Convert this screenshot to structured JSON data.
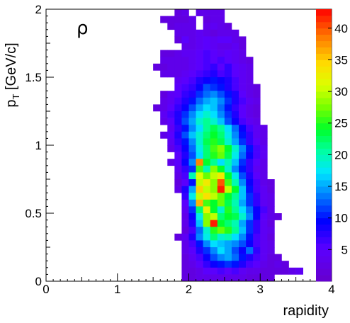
{
  "chart_data": {
    "type": "heatmap",
    "title": "",
    "annotation": "ρ",
    "xlabel": "rapidity",
    "ylabel": "p",
    "ylabel_sub": "T",
    "ylabel_unit": " [GeV/c]",
    "xlim": [
      0,
      4
    ],
    "ylim": [
      0,
      2
    ],
    "x_ticks": [
      0,
      1,
      2,
      3,
      4
    ],
    "x_tick_labels": [
      "0",
      "1",
      "2",
      "3",
      "4"
    ],
    "y_ticks": [
      0,
      0.5,
      1,
      1.5,
      2
    ],
    "y_tick_labels": [
      "0",
      "0.5",
      "1",
      "1.5",
      "2"
    ],
    "z_range": [
      0,
      43
    ],
    "colorbar_ticks": [
      5,
      10,
      15,
      20,
      25,
      30,
      35,
      40
    ],
    "colorbar_tick_labels": [
      "5",
      "10",
      "15",
      "20",
      "25",
      "30",
      "35",
      "40"
    ],
    "bins_x": 40,
    "bins_y": 40,
    "bin_width_x": 0.1,
    "bin_width_y": 0.05,
    "rows": [
      {
        "y": 1.95,
        "x_start": 1.8,
        "values": [
          2,
          3,
          0,
          3,
          3,
          3,
          3
        ]
      },
      {
        "y": 1.9,
        "x_start": 1.6,
        "values": [
          2,
          2,
          2,
          2,
          3,
          0,
          2,
          3,
          3
        ]
      },
      {
        "y": 1.85,
        "x_start": 1.7,
        "values": [
          2,
          3,
          3,
          3,
          0,
          3,
          4,
          3,
          2
        ]
      },
      {
        "y": 1.8,
        "x_start": 1.8,
        "values": [
          3,
          3,
          3,
          4,
          3,
          2,
          3,
          3,
          3
        ]
      },
      {
        "y": 1.75,
        "x_start": 1.8,
        "values": [
          2,
          5,
          3,
          4,
          5,
          4,
          5,
          5,
          3,
          2
        ]
      },
      {
        "y": 1.7,
        "x_start": 1.9,
        "values": [
          3,
          3,
          4,
          5,
          4,
          3,
          3,
          4,
          2
        ]
      },
      {
        "y": 1.65,
        "x_start": 1.6,
        "values": [
          2,
          2,
          3,
          4,
          4,
          5,
          6,
          5,
          4,
          5,
          4,
          3
        ]
      },
      {
        "y": 1.6,
        "x_start": 1.6,
        "values": [
          3,
          3,
          3,
          3,
          4,
          5,
          6,
          5,
          6,
          5,
          4,
          3,
          2
        ]
      },
      {
        "y": 1.55,
        "x_start": 1.5,
        "values": [
          2,
          2,
          3,
          3,
          3,
          4,
          5,
          6,
          7,
          5,
          7,
          5,
          4,
          3
        ]
      },
      {
        "y": 1.5,
        "x_start": 1.6,
        "values": [
          3,
          3,
          3,
          4,
          5,
          6,
          7,
          8,
          6,
          7,
          5,
          4,
          3
        ]
      },
      {
        "y": 1.45,
        "x_start": 1.8,
        "values": [
          4,
          5,
          6,
          8,
          9,
          10,
          9,
          8,
          6,
          4,
          3
        ]
      },
      {
        "y": 1.4,
        "x_start": 1.8,
        "values": [
          5,
          6,
          7,
          9,
          12,
          11,
          10,
          8,
          6,
          4,
          3,
          2
        ]
      },
      {
        "y": 1.35,
        "x_start": 1.6,
        "values": [
          2,
          4,
          5,
          7,
          8,
          11,
          13,
          14,
          12,
          10,
          8,
          5,
          3,
          2
        ]
      },
      {
        "y": 1.3,
        "x_start": 1.6,
        "values": [
          3,
          4,
          6,
          8,
          10,
          13,
          15,
          16,
          14,
          11,
          8,
          6,
          4,
          3
        ]
      },
      {
        "y": 1.25,
        "x_start": 1.5,
        "values": [
          2,
          3,
          5,
          7,
          9,
          12,
          15,
          17,
          16,
          13,
          10,
          7,
          5,
          3,
          2
        ]
      },
      {
        "y": 1.2,
        "x_start": 1.6,
        "values": [
          4,
          6,
          8,
          11,
          14,
          17,
          19,
          17,
          14,
          11,
          8,
          5,
          3,
          2
        ]
      },
      {
        "y": 1.15,
        "x_start": 1.6,
        "values": [
          3,
          5,
          8,
          12,
          15,
          19,
          21,
          19,
          16,
          12,
          9,
          6,
          4,
          3
        ]
      },
      {
        "y": 1.1,
        "x_start": 1.7,
        "values": [
          4,
          7,
          10,
          14,
          17,
          21,
          23,
          21,
          17,
          13,
          9,
          6,
          4,
          3
        ]
      },
      {
        "y": 1.05,
        "x_start": 1.6,
        "values": [
          3,
          5,
          8,
          12,
          16,
          19,
          22,
          24,
          22,
          18,
          14,
          10,
          7,
          4,
          3
        ]
      },
      {
        "y": 1.0,
        "x_start": 1.7,
        "values": [
          4,
          7,
          10,
          14,
          19,
          23,
          25,
          23,
          19,
          15,
          11,
          7,
          5,
          3
        ]
      },
      {
        "y": 0.95,
        "x_start": 1.7,
        "values": [
          3,
          6,
          9,
          13,
          18,
          22,
          26,
          28,
          24,
          19,
          14,
          10,
          6,
          4
        ]
      },
      {
        "y": 0.9,
        "x_start": 1.8,
        "values": [
          5,
          8,
          12,
          17,
          22,
          25,
          27,
          23,
          18,
          13,
          9,
          6,
          4
        ]
      },
      {
        "y": 0.85,
        "x_start": 1.7,
        "values": [
          3,
          5,
          9,
          14,
          38,
          24,
          21,
          17,
          20,
          16,
          11,
          7,
          5,
          3
        ]
      },
      {
        "y": 0.8,
        "x_start": 1.8,
        "values": [
          4,
          7,
          11,
          26,
          20,
          28,
          24,
          19,
          14,
          10,
          7,
          4,
          3
        ]
      },
      {
        "y": 0.75,
        "x_start": 1.8,
        "values": [
          3,
          6,
          20,
          31,
          27,
          30,
          33,
          24,
          18,
          12,
          8,
          5,
          3
        ]
      },
      {
        "y": 0.7,
        "x_start": 1.8,
        "values": [
          2,
          5,
          10,
          30,
          33,
          28,
          40,
          26,
          20,
          14,
          9,
          6,
          3,
          2
        ]
      },
      {
        "y": 0.65,
        "x_start": 1.8,
        "values": [
          3,
          8,
          15,
          35,
          30,
          28,
          42,
          30,
          24,
          16,
          10,
          6,
          4,
          2
        ]
      },
      {
        "y": 0.6,
        "x_start": 1.9,
        "values": [
          7,
          18,
          30,
          34,
          30,
          27,
          24,
          21,
          16,
          11,
          7,
          4,
          3
        ]
      },
      {
        "y": 0.55,
        "x_start": 1.9,
        "values": [
          5,
          14,
          36,
          26,
          24,
          27,
          23,
          20,
          15,
          11,
          7,
          4,
          3
        ]
      },
      {
        "y": 0.5,
        "x_start": 1.9,
        "values": [
          4,
          11,
          22,
          32,
          24,
          19,
          25,
          21,
          17,
          13,
          9,
          6,
          3
        ]
      },
      {
        "y": 0.45,
        "x_start": 1.9,
        "values": [
          3,
          9,
          18,
          28,
          30,
          22,
          24,
          23,
          19,
          14,
          9,
          5,
          3,
          2
        ]
      },
      {
        "y": 0.4,
        "x_start": 1.9,
        "values": [
          3,
          8,
          16,
          28,
          42,
          24,
          22,
          20,
          15,
          11,
          7,
          4,
          2
        ]
      },
      {
        "y": 0.35,
        "x_start": 1.9,
        "values": [
          2,
          6,
          13,
          19,
          25,
          27,
          25,
          21,
          16,
          11,
          7,
          4,
          3
        ]
      },
      {
        "y": 0.3,
        "x_start": 1.8,
        "values": [
          2,
          4,
          8,
          14,
          18,
          22,
          19,
          20,
          17,
          14,
          10,
          6,
          4,
          2
        ]
      },
      {
        "y": 0.25,
        "x_start": 1.9,
        "values": [
          3,
          6,
          10,
          14,
          17,
          16,
          15,
          14,
          12,
          9,
          6,
          4,
          3
        ]
      },
      {
        "y": 0.2,
        "x_start": 1.9,
        "values": [
          3,
          5,
          8,
          11,
          14,
          17,
          15,
          12,
          9,
          13,
          7,
          4,
          3
        ]
      },
      {
        "y": 0.15,
        "x_start": 1.9,
        "values": [
          2,
          4,
          6,
          9,
          12,
          14,
          15,
          13,
          10,
          8,
          6,
          4,
          2,
          2
        ]
      },
      {
        "y": 0.1,
        "x_start": 1.9,
        "values": [
          2,
          3,
          5,
          7,
          9,
          10,
          11,
          10,
          8,
          6,
          5,
          3,
          2,
          3,
          2
        ]
      },
      {
        "y": 0.05,
        "x_start": 1.9,
        "values": [
          2,
          2,
          3,
          5,
          5,
          6,
          5,
          6,
          4,
          3,
          3,
          2,
          2,
          2,
          2,
          3,
          4
        ]
      },
      {
        "y": 0.0,
        "x_start": 1.9,
        "values": [
          2,
          2,
          3,
          3,
          3,
          3,
          3,
          3,
          3,
          2,
          2,
          2,
          2
        ]
      }
    ]
  }
}
